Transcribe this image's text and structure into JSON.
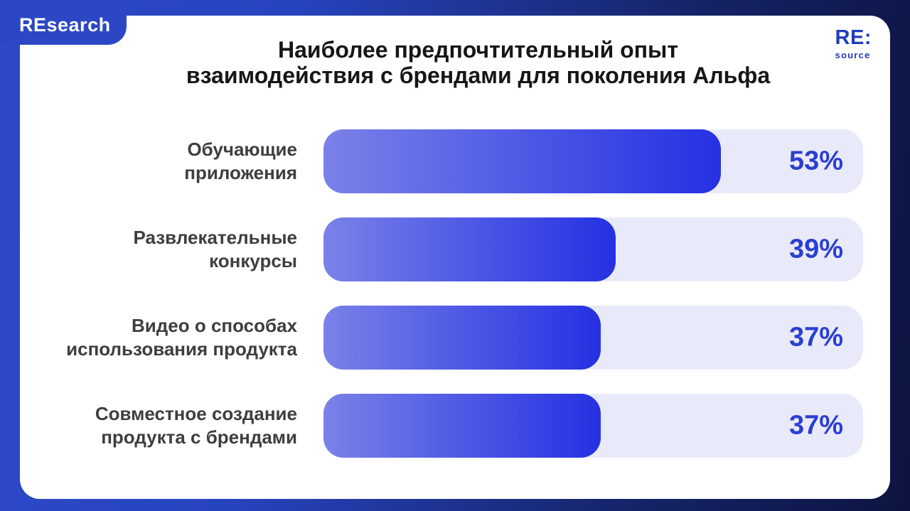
{
  "brand_tab": {
    "label": "REsearch"
  },
  "logo": {
    "top": "RE:",
    "bottom": "source"
  },
  "header": {
    "title_line1": "Наиболее предпочтительный опыт",
    "title_line2": "взаимодействия с брендами для поколения Альфа"
  },
  "colors": {
    "background_start": "#2d49c8",
    "background_end": "#0d1440",
    "card": "#ffffff",
    "track": "#e9eaf9",
    "bar_gradient_start": "#7b82e8",
    "bar_gradient_end": "#2531e2",
    "value_text": "#2b3fd0",
    "label_text": "#3e3e3e",
    "logo_blue": "#1f3cba"
  },
  "chart_data": {
    "type": "bar",
    "orientation": "horizontal",
    "title": "Наиболее предпочтительный опыт взаимодействия с брендами для поколения Альфа",
    "categories": [
      "Обучающие приложения",
      "Развлекательные конкурсы",
      "Видео о способах использования продукта",
      "Совместное создание продукта с брендами"
    ],
    "values": [
      53,
      39,
      37,
      37
    ],
    "unit": "%",
    "xlim": [
      0,
      72
    ],
    "grid": false,
    "legend": false,
    "rows": [
      {
        "label_lines": [
          "Обучающие",
          "приложения"
        ],
        "value": 53,
        "display": "53%"
      },
      {
        "label_lines": [
          "Развлекательные",
          "конкурсы"
        ],
        "value": 39,
        "display": "39%"
      },
      {
        "label_lines": [
          "Видео о способах",
          "использования продукта"
        ],
        "value": 37,
        "display": "37%"
      },
      {
        "label_lines": [
          "Совместное создание",
          "продукта с брендами"
        ],
        "value": 37,
        "display": "37%"
      }
    ]
  }
}
